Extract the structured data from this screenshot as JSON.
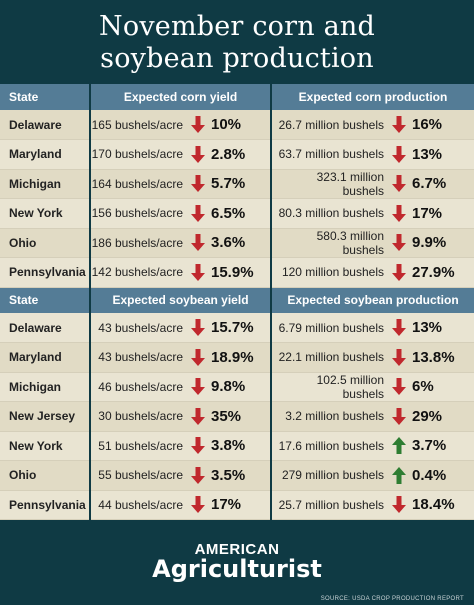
{
  "title_line1": "November corn and",
  "title_line2": "soybean production",
  "brand_line1": "AMERICAN",
  "brand_line2": "Agriculturist",
  "source": "SOURCE: USDA CROP PRODUCTION REPORT",
  "colors": {
    "background": "#0f3a44",
    "header": "#547c96",
    "down_arrow": "#c0282d",
    "up_arrow": "#2e7d32"
  },
  "chart_data": [
    {
      "type": "table",
      "columns": [
        "State",
        "Expected corn yield",
        "Expected corn production"
      ],
      "rows": [
        {
          "state": "Delaware",
          "yield": "165 bushels/acre",
          "yield_dir": "down",
          "yield_pct": "10%",
          "prod": "26.7 million bushels",
          "prod_dir": "down",
          "prod_pct": "16%"
        },
        {
          "state": "Maryland",
          "yield": "170 bushels/acre",
          "yield_dir": "down",
          "yield_pct": "2.8%",
          "prod": "63.7 million bushels",
          "prod_dir": "down",
          "prod_pct": "13%"
        },
        {
          "state": "Michigan",
          "yield": "164 bushels/acre",
          "yield_dir": "down",
          "yield_pct": "5.7%",
          "prod": "323.1 million bushels",
          "prod_dir": "down",
          "prod_pct": "6.7%"
        },
        {
          "state": "New York",
          "yield": "156 bushels/acre",
          "yield_dir": "down",
          "yield_pct": "6.5%",
          "prod": "80.3 million bushels",
          "prod_dir": "down",
          "prod_pct": "17%"
        },
        {
          "state": "Ohio",
          "yield": "186 bushels/acre",
          "yield_dir": "down",
          "yield_pct": "3.6%",
          "prod": "580.3 million bushels",
          "prod_dir": "down",
          "prod_pct": "9.9%"
        },
        {
          "state": "Pennsylvania",
          "yield": "142 bushels/acre",
          "yield_dir": "down",
          "yield_pct": "15.9%",
          "prod": "120 million bushels",
          "prod_dir": "down",
          "prod_pct": "27.9%"
        }
      ]
    },
    {
      "type": "table",
      "columns": [
        "State",
        "Expected soybean yield",
        "Expected soybean production"
      ],
      "rows": [
        {
          "state": "Delaware",
          "yield": "43 bushels/acre",
          "yield_dir": "down",
          "yield_pct": "15.7%",
          "prod": "6.79 million bushels",
          "prod_dir": "down",
          "prod_pct": "13%"
        },
        {
          "state": "Maryland",
          "yield": "43 bushels/acre",
          "yield_dir": "down",
          "yield_pct": "18.9%",
          "prod": "22.1 million bushels",
          "prod_dir": "down",
          "prod_pct": "13.8%"
        },
        {
          "state": "Michigan",
          "yield": "46 bushels/acre",
          "yield_dir": "down",
          "yield_pct": "9.8%",
          "prod": "102.5 million bushels",
          "prod_dir": "down",
          "prod_pct": "6%"
        },
        {
          "state": "New Jersey",
          "yield": "30 bushels/acre",
          "yield_dir": "down",
          "yield_pct": "35%",
          "prod": "3.2 million bushels",
          "prod_dir": "down",
          "prod_pct": "29%"
        },
        {
          "state": "New York",
          "yield": "51 bushels/acre",
          "yield_dir": "down",
          "yield_pct": "3.8%",
          "prod": "17.6 million bushels",
          "prod_dir": "up",
          "prod_pct": "3.7%"
        },
        {
          "state": "Ohio",
          "yield": "55 bushels/acre",
          "yield_dir": "down",
          "yield_pct": "3.5%",
          "prod": "279 million bushels",
          "prod_dir": "up",
          "prod_pct": "0.4%"
        },
        {
          "state": "Pennsylvania",
          "yield": "44 bushels/acre",
          "yield_dir": "down",
          "yield_pct": "17%",
          "prod": "25.7 million bushels",
          "prod_dir": "down",
          "prod_pct": "18.4%"
        }
      ]
    }
  ]
}
